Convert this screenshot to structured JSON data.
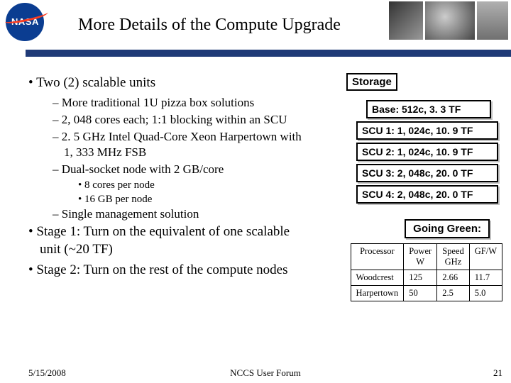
{
  "header": {
    "logo_text": "NASA",
    "title": "More Details of the Compute Upgrade"
  },
  "bullets": {
    "b1": "Two (2) scalable units",
    "b1_s1": "More traditional 1U pizza box solutions",
    "b1_s2": "2, 048 cores each; 1:1 blocking within an SCU",
    "b1_s3": "2. 5 GHz Intel Quad-Core Xeon Harpertown with 1, 333 MHz FSB",
    "b1_s4": "Dual-socket node with 2 GB/core",
    "b1_s4_a": "8 cores per node",
    "b1_s4_b": "16 GB per node",
    "b1_s5": "Single management solution",
    "b2": "Stage 1: Turn on the equivalent of one scalable unit (~20 TF)",
    "b3": "Stage 2: Turn on the rest of the compute nodes"
  },
  "storage": {
    "label": "Storage",
    "boxes": [
      "Base: 512c, 3. 3 TF",
      "SCU 1: 1, 024c, 10. 9 TF",
      "SCU 2: 1, 024c, 10. 9 TF",
      "SCU 3: 2, 048c, 20. 0 TF",
      "SCU 4: 2, 048c, 20. 0 TF"
    ]
  },
  "green": {
    "title": "Going Green:",
    "table": {
      "columns": [
        "Processor",
        "Power W",
        "Speed GHz",
        "GF/W"
      ],
      "rows": [
        [
          "Woodcrest",
          "125",
          "2.66",
          "11.7"
        ],
        [
          "Harpertown",
          "50",
          "2.5",
          "5.0"
        ]
      ]
    }
  },
  "footer": {
    "date": "5/15/2008",
    "center": "NCCS User Forum",
    "page": "21"
  },
  "colors": {
    "bar": "#1f3a77",
    "nasa_blue": "#0b3d91",
    "nasa_red": "#fc3d21"
  }
}
